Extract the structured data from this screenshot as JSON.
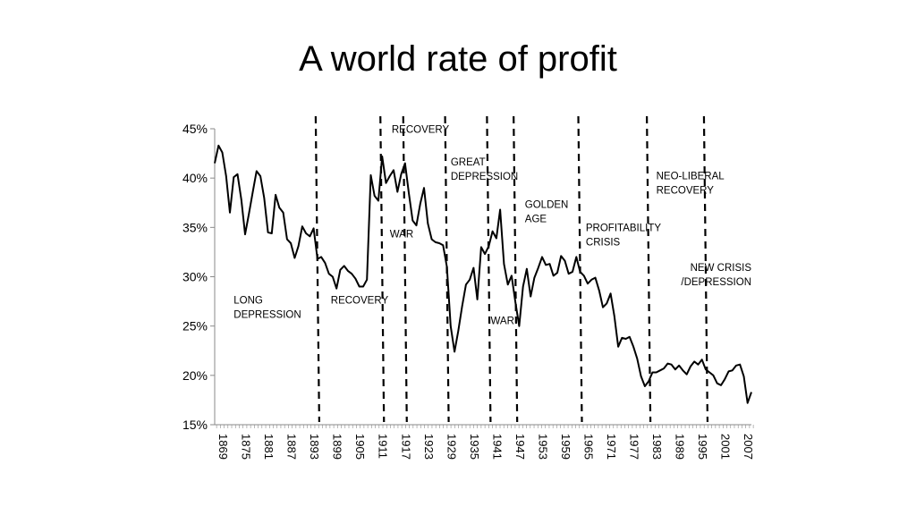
{
  "title": "A world rate of profit",
  "chart_data": {
    "type": "line",
    "title": "A world rate of profit",
    "xlabel": "",
    "ylabel": "",
    "xlim": [
      1869,
      2010
    ],
    "ylim": [
      15,
      45
    ],
    "yticks": [
      "15%",
      "20%",
      "25%",
      "30%",
      "35%",
      "40%",
      "45%"
    ],
    "ytick_values": [
      15,
      20,
      25,
      30,
      35,
      40,
      45
    ],
    "xticks": [
      "1869",
      "1875",
      "1881",
      "1887",
      "1893",
      "1899",
      "1905",
      "1911",
      "1917",
      "1923",
      "1929",
      "1935",
      "1941",
      "1947",
      "1953",
      "1959",
      "1965",
      "1971",
      "1977",
      "1983",
      "1989",
      "1995",
      "2001",
      "2007"
    ],
    "grid": false,
    "legend": "none",
    "series": [
      {
        "values": [
          [
            1869,
            41.5
          ],
          [
            1870,
            43.3
          ],
          [
            1871,
            42.6
          ],
          [
            1872,
            40.2
          ],
          [
            1873,
            36.5
          ],
          [
            1874,
            40.1
          ],
          [
            1875,
            40.4
          ],
          [
            1876,
            37.8
          ],
          [
            1877,
            34.3
          ],
          [
            1878,
            36.4
          ],
          [
            1879,
            38.6
          ],
          [
            1880,
            40.7
          ],
          [
            1881,
            40.2
          ],
          [
            1882,
            38.0
          ],
          [
            1883,
            34.5
          ],
          [
            1884,
            34.4
          ],
          [
            1885,
            38.3
          ],
          [
            1886,
            37.0
          ],
          [
            1887,
            36.5
          ],
          [
            1888,
            33.8
          ],
          [
            1889,
            33.4
          ],
          [
            1890,
            31.9
          ],
          [
            1891,
            33.1
          ],
          [
            1892,
            35.1
          ],
          [
            1893,
            34.4
          ],
          [
            1894,
            34.1
          ],
          [
            1895,
            34.9
          ],
          [
            1896,
            31.8
          ],
          [
            1897,
            32.0
          ],
          [
            1898,
            31.4
          ],
          [
            1899,
            30.3
          ],
          [
            1900,
            30.0
          ],
          [
            1901,
            28.8
          ],
          [
            1902,
            30.7
          ],
          [
            1903,
            31.1
          ],
          [
            1904,
            30.6
          ],
          [
            1905,
            30.3
          ],
          [
            1906,
            29.8
          ],
          [
            1907,
            29.0
          ],
          [
            1908,
            29.0
          ],
          [
            1909,
            29.7
          ],
          [
            1910,
            40.3
          ],
          [
            1911,
            38.2
          ],
          [
            1912,
            37.7
          ],
          [
            1913,
            42.2
          ],
          [
            1914,
            39.5
          ],
          [
            1915,
            40.2
          ],
          [
            1916,
            40.8
          ],
          [
            1917,
            38.6
          ],
          [
            1918,
            40.4
          ],
          [
            1919,
            41.5
          ],
          [
            1920,
            38.5
          ],
          [
            1921,
            35.7
          ],
          [
            1922,
            35.2
          ],
          [
            1923,
            37.4
          ],
          [
            1924,
            39.0
          ],
          [
            1925,
            35.4
          ],
          [
            1926,
            33.8
          ],
          [
            1927,
            33.5
          ],
          [
            1928,
            33.4
          ],
          [
            1929,
            33.2
          ],
          [
            1930,
            31.0
          ],
          [
            1931,
            25.0
          ],
          [
            1932,
            22.4
          ],
          [
            1933,
            24.5
          ],
          [
            1934,
            27.0
          ],
          [
            1935,
            29.2
          ],
          [
            1936,
            29.7
          ],
          [
            1937,
            30.9
          ],
          [
            1938,
            27.7
          ],
          [
            1939,
            33.0
          ],
          [
            1940,
            32.3
          ],
          [
            1941,
            33.1
          ],
          [
            1942,
            34.6
          ],
          [
            1943,
            33.9
          ],
          [
            1944,
            36.8
          ],
          [
            1945,
            31.3
          ],
          [
            1946,
            29.2
          ],
          [
            1947,
            30.1
          ],
          [
            1948,
            27.4
          ],
          [
            1949,
            25.0
          ],
          [
            1950,
            29.0
          ],
          [
            1951,
            30.8
          ],
          [
            1952,
            28.0
          ],
          [
            1953,
            29.9
          ],
          [
            1954,
            30.9
          ],
          [
            1955,
            32.0
          ],
          [
            1956,
            31.2
          ],
          [
            1957,
            31.3
          ],
          [
            1958,
            30.1
          ],
          [
            1959,
            30.4
          ],
          [
            1960,
            32.1
          ],
          [
            1961,
            31.6
          ],
          [
            1962,
            30.3
          ],
          [
            1963,
            30.5
          ],
          [
            1964,
            32.0
          ],
          [
            1965,
            30.5
          ],
          [
            1966,
            30.1
          ],
          [
            1967,
            29.3
          ],
          [
            1968,
            29.7
          ],
          [
            1969,
            29.9
          ],
          [
            1970,
            28.6
          ],
          [
            1971,
            26.9
          ],
          [
            1972,
            27.3
          ],
          [
            1973,
            28.3
          ],
          [
            1974,
            26.0
          ],
          [
            1975,
            22.9
          ],
          [
            1976,
            23.8
          ],
          [
            1977,
            23.7
          ],
          [
            1978,
            23.9
          ],
          [
            1979,
            22.9
          ],
          [
            1980,
            21.7
          ],
          [
            1981,
            19.9
          ],
          [
            1982,
            18.9
          ],
          [
            1983,
            19.4
          ],
          [
            1984,
            20.3
          ],
          [
            1985,
            20.3
          ],
          [
            1986,
            20.5
          ],
          [
            1987,
            20.7
          ],
          [
            1988,
            21.2
          ],
          [
            1989,
            21.1
          ],
          [
            1990,
            20.6
          ],
          [
            1991,
            21.0
          ],
          [
            1992,
            20.5
          ],
          [
            1993,
            20.1
          ],
          [
            1994,
            20.9
          ],
          [
            1995,
            21.4
          ],
          [
            1996,
            21.1
          ],
          [
            1997,
            21.6
          ],
          [
            1998,
            20.6
          ],
          [
            1999,
            20.3
          ],
          [
            2000,
            20.0
          ],
          [
            2001,
            19.2
          ],
          [
            2002,
            19.0
          ],
          [
            2003,
            19.6
          ],
          [
            2004,
            20.4
          ],
          [
            2005,
            20.5
          ],
          [
            2006,
            21.0
          ],
          [
            2007,
            21.1
          ],
          [
            2008,
            19.9
          ],
          [
            2009,
            17.2
          ],
          [
            2010,
            18.3
          ]
        ]
      }
    ],
    "period_dividers": [
      1896,
      1913,
      1919,
      1930,
      1941,
      1948,
      1965,
      1983,
      1998
    ],
    "annotations": [
      {
        "id": "long-depression",
        "lines": [
          "LONG",
          "DEPRESSION"
        ],
        "x": 1874,
        "y": 27.3
      },
      {
        "id": "recovery-1",
        "lines": [
          "RECOVERY"
        ],
        "x": 1899.5,
        "y": 27.3
      },
      {
        "id": "war-1",
        "lines": [
          "WAR"
        ],
        "x": 1915,
        "y": 34.0
      },
      {
        "id": "recovery-2",
        "lines": [
          "RECOVERY"
        ],
        "x": 1915.5,
        "y": 44.6
      },
      {
        "id": "great-depression",
        "lines": [
          "GREAT",
          "DEPRESSION"
        ],
        "x": 1931,
        "y": 41.3
      },
      {
        "id": "war-2",
        "lines": [
          "WAR"
        ],
        "x": 1941.5,
        "y": 25.2
      },
      {
        "id": "golden-age",
        "lines": [
          "GOLDEN",
          "AGE"
        ],
        "x": 1950.5,
        "y": 37.0
      },
      {
        "id": "profitability-crisis",
        "lines": [
          "PROFITABILITY",
          "CRISIS"
        ],
        "x": 1966.5,
        "y": 34.6
      },
      {
        "id": "neo-liberal-recovery",
        "lines": [
          "NEO-LIBERAL",
          "RECOVERY"
        ],
        "x": 1985,
        "y": 39.9
      },
      {
        "id": "new-crisis-depression",
        "lines": [
          "NEW CRISIS",
          "/DEPRESSION"
        ],
        "x": 2010,
        "y": 30.6,
        "align": "end"
      }
    ],
    "line_color": "#000000"
  }
}
